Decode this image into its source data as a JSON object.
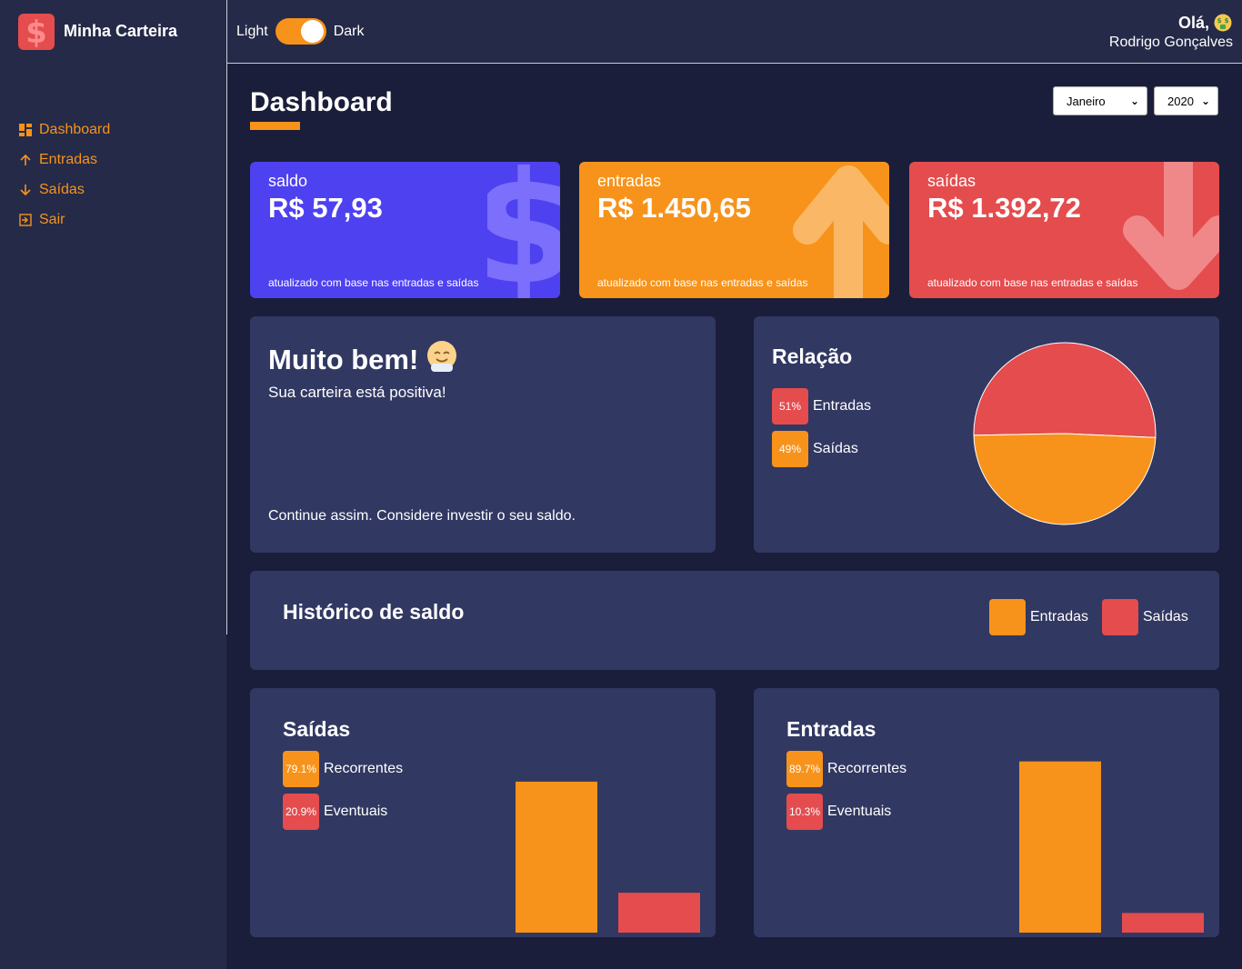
{
  "app": {
    "title": "Minha Carteira"
  },
  "sidebar": {
    "items": [
      {
        "label": "Dashboard",
        "icon": "dashboard-icon"
      },
      {
        "label": "Entradas",
        "icon": "arrow-up-icon"
      },
      {
        "label": "Saídas",
        "icon": "arrow-down-icon"
      },
      {
        "label": "Sair",
        "icon": "logout-icon"
      }
    ]
  },
  "header": {
    "toggle": {
      "left_label": "Light",
      "right_label": "Dark",
      "checked": true
    },
    "greeting": "Olá,",
    "greeting_emoji": "money-face-icon",
    "user_name": "Rodrigo Gonçalves"
  },
  "page": {
    "title": "Dashboard",
    "month_select": "Janeiro",
    "year_select": "2020"
  },
  "colors": {
    "accent": "#f7931b",
    "danger": "#e44c4e",
    "primary": "#4e41f0",
    "panel": "#313862",
    "background": "#1b1e3a",
    "sidebar": "#252a48"
  },
  "wallet": [
    {
      "label": "saldo",
      "amount": "R$ 57,93",
      "note": "atualizado com base nas entradas e saídas",
      "icon": "dollar-icon",
      "color": "#4e41f0"
    },
    {
      "label": "entradas",
      "amount": "R$ 1.450,65",
      "note": "atualizado com base nas entradas e saídas",
      "icon": "arrow-up-icon",
      "color": "#f7931b"
    },
    {
      "label": "saídas",
      "amount": "R$ 1.392,72",
      "note": "atualizado com base nas entradas e saídas",
      "icon": "arrow-down-icon",
      "color": "#e44c4e"
    }
  ],
  "message": {
    "title": "Muito bem!",
    "emoji": "happy-face-icon",
    "subtitle": "Sua carteira está positiva!",
    "footer": "Continue assim. Considere investir o seu saldo."
  },
  "relation": {
    "title": "Relação",
    "items": [
      {
        "label": "Entradas",
        "percent": "51%",
        "color": "#e44c4e"
      },
      {
        "label": "Saídas",
        "percent": "49%",
        "color": "#f7931b"
      }
    ]
  },
  "history": {
    "title": "Histórico de saldo",
    "legend": [
      {
        "label": "Entradas",
        "color": "#f7931b"
      },
      {
        "label": "Saídas",
        "color": "#e44c4e"
      }
    ]
  },
  "chart_data": [
    {
      "type": "pie",
      "title": "Relação",
      "categories": [
        "Entradas",
        "Saídas"
      ],
      "values": [
        51,
        49
      ],
      "colors": [
        "#e44c4e",
        "#f7931b"
      ]
    },
    {
      "type": "bar",
      "title": "Saídas",
      "categories": [
        "Recorrentes",
        "Eventuais"
      ],
      "values": [
        79.1,
        20.9
      ],
      "labels": [
        "79.1%",
        "20.9%"
      ],
      "colors": [
        "#f7931b",
        "#e44c4e"
      ],
      "ylim": [
        0,
        100
      ]
    },
    {
      "type": "bar",
      "title": "Entradas",
      "categories": [
        "Recorrentes",
        "Eventuais"
      ],
      "values": [
        89.7,
        10.3
      ],
      "labels": [
        "89.7%",
        "10.3%"
      ],
      "colors": [
        "#f7931b",
        "#e44c4e"
      ],
      "ylim": [
        0,
        100
      ]
    }
  ]
}
